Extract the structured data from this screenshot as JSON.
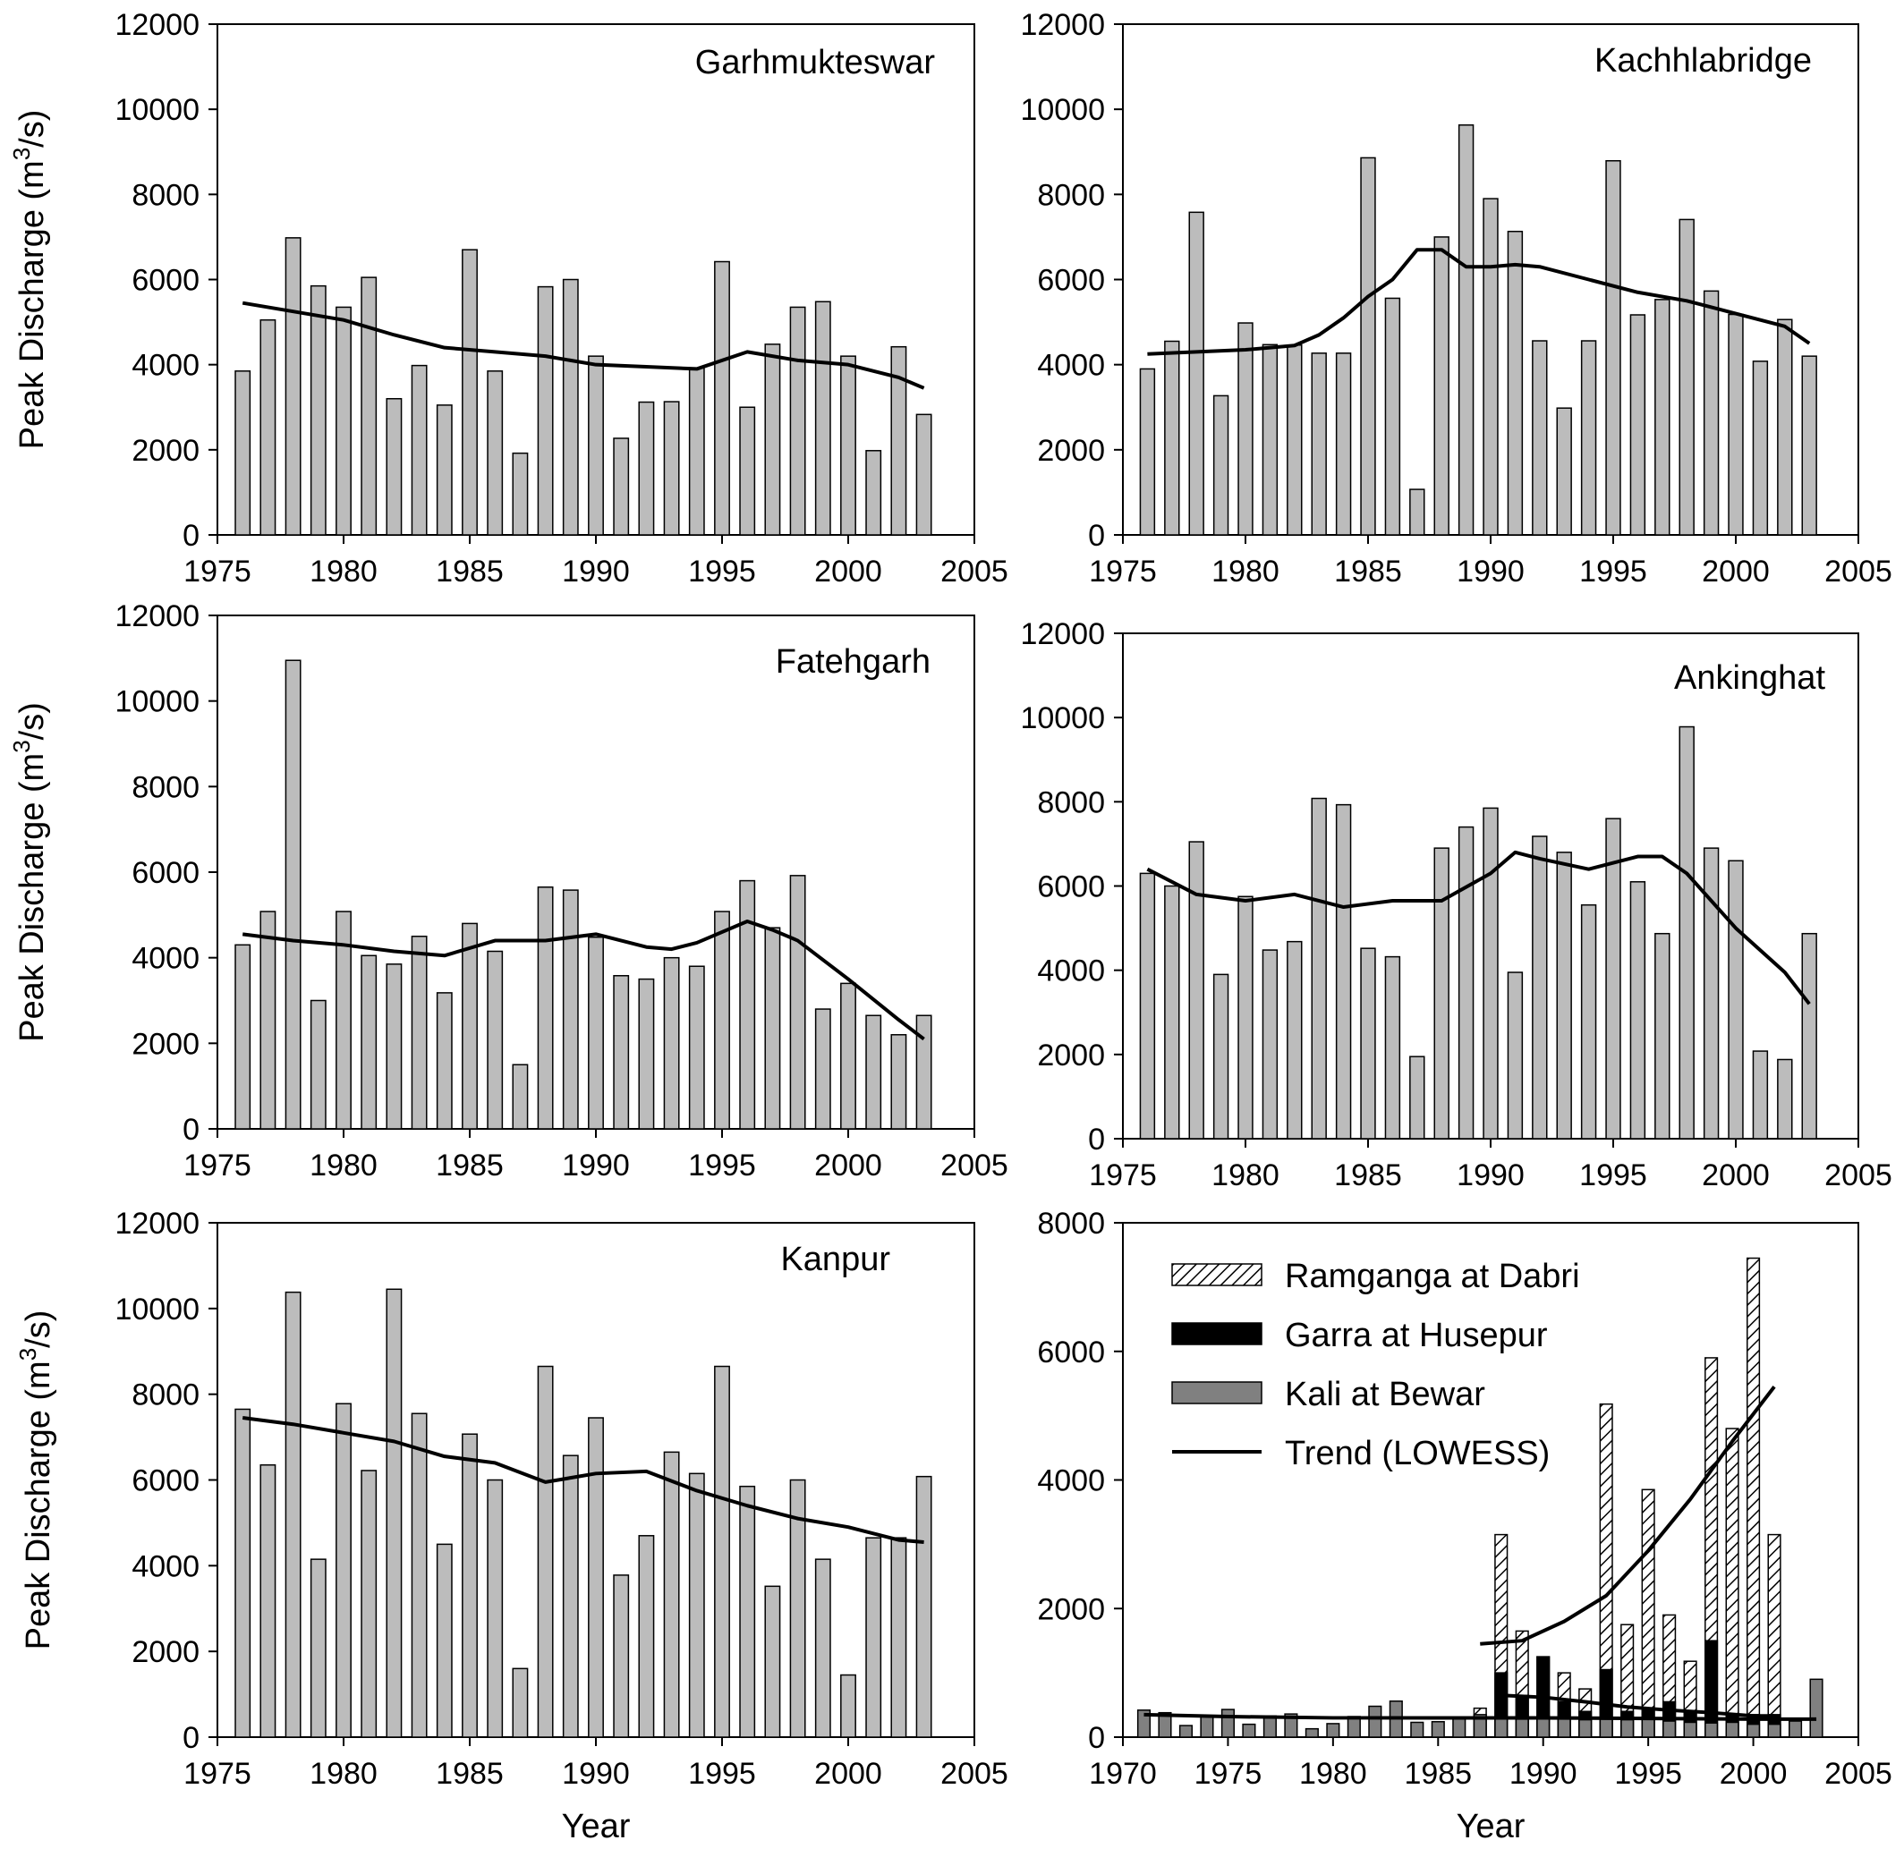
{
  "chart_data": [
    {
      "type": "bar",
      "title": "Garhmukteswar",
      "ylabel": "Peak Discharge",
      "yunit": "(m3/s)",
      "xlabel": "",
      "xlim": [
        1975,
        2005
      ],
      "ylim": [
        0,
        12000
      ],
      "xticks": [
        1975,
        1980,
        1985,
        1990,
        1995,
        2000,
        2005
      ],
      "yticks": [
        0,
        2000,
        4000,
        6000,
        8000,
        10000,
        12000
      ],
      "x": [
        1976,
        1977,
        1978,
        1979,
        1980,
        1981,
        1982,
        1983,
        1984,
        1985,
        1986,
        1987,
        1988,
        1989,
        1990,
        1991,
        1992,
        1993,
        1994,
        1995,
        1996,
        1997,
        1998,
        1999,
        2000,
        2001,
        2002,
        2003
      ],
      "series": [
        {
          "values": [
            3850,
            5050,
            6980,
            5850,
            5350,
            6050,
            3200,
            3980,
            3050,
            6700,
            3850,
            1920,
            5830,
            6000,
            4200,
            2270,
            3120,
            3130,
            3920,
            6420,
            3000,
            4480,
            5350,
            5480,
            4200,
            1980,
            4420,
            2830
          ]
        }
      ],
      "trend": {
        "x": [
          1976,
          1978,
          1980,
          1982,
          1984,
          1986,
          1988,
          1990,
          1992,
          1994,
          1996,
          1998,
          2000,
          2002,
          2003
        ],
        "y": [
          5450,
          5250,
          5050,
          4700,
          4400,
          4300,
          4200,
          4000,
          3950,
          3900,
          4300,
          4100,
          4000,
          3700,
          3450
        ]
      }
    },
    {
      "type": "bar",
      "title": "Kachhlabridge",
      "xlabel": "",
      "xlim": [
        1975,
        2005
      ],
      "ylim": [
        0,
        12000
      ],
      "xticks": [
        1975,
        1980,
        1985,
        1990,
        1995,
        2000,
        2005
      ],
      "yticks": [
        0,
        2000,
        4000,
        6000,
        8000,
        10000,
        12000
      ],
      "x": [
        1976,
        1977,
        1978,
        1979,
        1980,
        1981,
        1982,
        1983,
        1984,
        1985,
        1986,
        1987,
        1988,
        1989,
        1990,
        1991,
        1992,
        1993,
        1994,
        1995,
        1996,
        1997,
        1998,
        1999,
        2000,
        2001,
        2002,
        2003
      ],
      "series": [
        {
          "values": [
            3900,
            4550,
            7580,
            3270,
            4980,
            4470,
            4460,
            4270,
            4270,
            8860,
            5560,
            1070,
            7000,
            9630,
            7900,
            7130,
            4560,
            2980,
            4560,
            8790,
            5170,
            5530,
            7410,
            5730,
            5180,
            4080,
            5060,
            4200
          ]
        }
      ],
      "trend": {
        "x": [
          1976,
          1978,
          1980,
          1982,
          1983,
          1984,
          1985,
          1986,
          1987,
          1988,
          1989,
          1990,
          1991,
          1992,
          1994,
          1996,
          1998,
          2000,
          2002,
          2003
        ],
        "y": [
          4250,
          4300,
          4350,
          4450,
          4700,
          5100,
          5600,
          6000,
          6700,
          6700,
          6300,
          6300,
          6350,
          6300,
          6000,
          5700,
          5500,
          5200,
          4900,
          4500
        ]
      }
    },
    {
      "type": "bar",
      "title": "Fatehgarh",
      "ylabel": "Peak Discharge",
      "yunit": "(m3/s)",
      "xlabel": "",
      "xlim": [
        1975,
        2005
      ],
      "ylim": [
        0,
        12000
      ],
      "xticks": [
        1975,
        1980,
        1985,
        1990,
        1995,
        2000,
        2005
      ],
      "yticks": [
        0,
        2000,
        4000,
        6000,
        8000,
        10000,
        12000
      ],
      "x": [
        1976,
        1977,
        1978,
        1979,
        1980,
        1981,
        1982,
        1983,
        1984,
        1985,
        1986,
        1987,
        1988,
        1989,
        1990,
        1991,
        1992,
        1993,
        1994,
        1995,
        1996,
        1997,
        1998,
        1999,
        2000,
        2001,
        2002,
        2003
      ],
      "series": [
        {
          "values": [
            4300,
            5080,
            10950,
            3000,
            5080,
            4050,
            3850,
            4500,
            3180,
            4800,
            4150,
            1500,
            5650,
            5580,
            4480,
            3580,
            3500,
            4000,
            3800,
            5080,
            5800,
            4700,
            5920,
            2800,
            3400,
            2650,
            2200,
            2650
          ]
        }
      ],
      "trend": {
        "x": [
          1976,
          1978,
          1980,
          1982,
          1984,
          1986,
          1988,
          1990,
          1992,
          1993,
          1994,
          1996,
          1997,
          1998,
          2000,
          2002,
          2003
        ],
        "y": [
          4550,
          4400,
          4300,
          4150,
          4050,
          4400,
          4400,
          4550,
          4250,
          4200,
          4350,
          4850,
          4650,
          4400,
          3500,
          2550,
          2100
        ]
      }
    },
    {
      "type": "bar",
      "title": "Ankinghat",
      "xlabel": "",
      "xlim": [
        1975,
        2005
      ],
      "ylim": [
        0,
        12000
      ],
      "xticks": [
        1975,
        1980,
        1985,
        1990,
        1995,
        2000,
        2005
      ],
      "yticks": [
        0,
        2000,
        4000,
        6000,
        8000,
        10000,
        12000
      ],
      "x": [
        1976,
        1977,
        1978,
        1979,
        1980,
        1981,
        1982,
        1983,
        1984,
        1985,
        1986,
        1987,
        1988,
        1989,
        1990,
        1991,
        1992,
        1993,
        1994,
        1995,
        1996,
        1997,
        1998,
        1999,
        2000,
        2001,
        2002,
        2003
      ],
      "series": [
        {
          "values": [
            6300,
            6000,
            7050,
            3900,
            5750,
            4480,
            4680,
            8080,
            7930,
            4520,
            4320,
            1950,
            6900,
            7400,
            7850,
            3950,
            7180,
            6800,
            5550,
            7600,
            6100,
            4870,
            9780,
            6900,
            6600,
            2080,
            1880,
            4870
          ]
        }
      ],
      "trend": {
        "x": [
          1976,
          1978,
          1980,
          1982,
          1984,
          1986,
          1988,
          1990,
          1991,
          1992,
          1994,
          1996,
          1997,
          1998,
          2000,
          2002,
          2003
        ],
        "y": [
          6400,
          5800,
          5650,
          5800,
          5500,
          5650,
          5650,
          6300,
          6800,
          6650,
          6400,
          6700,
          6700,
          6300,
          5000,
          3950,
          3200
        ]
      }
    },
    {
      "type": "bar",
      "title": "Kanpur",
      "ylabel": "Peak Discharge",
      "yunit": "(m3/s)",
      "xlabel": "Year",
      "xlim": [
        1975,
        2005
      ],
      "ylim": [
        0,
        12000
      ],
      "xticks": [
        1975,
        1980,
        1985,
        1990,
        1995,
        2000,
        2005
      ],
      "yticks": [
        0,
        2000,
        4000,
        6000,
        8000,
        10000,
        12000
      ],
      "x": [
        1976,
        1977,
        1978,
        1979,
        1980,
        1981,
        1982,
        1983,
        1984,
        1985,
        1986,
        1987,
        1988,
        1989,
        1990,
        1991,
        1992,
        1993,
        1994,
        1995,
        1996,
        1997,
        1998,
        1999,
        2000,
        2001,
        2002,
        2003
      ],
      "series": [
        {
          "values": [
            7650,
            6350,
            10380,
            4150,
            7780,
            6220,
            10450,
            7550,
            4500,
            7070,
            6000,
            1600,
            8650,
            6570,
            7450,
            3780,
            4700,
            6650,
            6150,
            8650,
            5850,
            3520,
            6000,
            4150,
            1450,
            4650,
            4650,
            6080
          ]
        }
      ],
      "trend": {
        "x": [
          1976,
          1978,
          1980,
          1982,
          1984,
          1986,
          1988,
          1990,
          1992,
          1994,
          1996,
          1998,
          2000,
          2002,
          2003
        ],
        "y": [
          7450,
          7300,
          7100,
          6900,
          6550,
          6400,
          5950,
          6150,
          6200,
          5750,
          5400,
          5100,
          4900,
          4600,
          4550
        ]
      }
    },
    {
      "type": "bar",
      "title": "",
      "xlabel": "Year",
      "xlim": [
        1970,
        2005
      ],
      "ylim": [
        0,
        8000
      ],
      "xticks": [
        1970,
        1975,
        1980,
        1985,
        1990,
        1995,
        2000,
        2005
      ],
      "yticks": [
        0,
        2000,
        4000,
        6000,
        8000
      ],
      "legend": {
        "position": "top-left",
        "entries": [
          "Ramganga at Dabri",
          "Garra at Husepur",
          "Kali at Bewar",
          "Trend (LOWESS)"
        ]
      },
      "series": [
        {
          "name": "Ramganga at Dabri",
          "pattern": "hatched",
          "x": [
            1987,
            1988,
            1989,
            1990,
            1991,
            1992,
            1993,
            1994,
            1995,
            1996,
            1997,
            1998,
            1999,
            2000,
            2001
          ],
          "values": [
            450,
            3150,
            1650,
            1250,
            1000,
            750,
            5180,
            1750,
            3850,
            1900,
            1180,
            5900,
            4800,
            7450,
            3150
          ]
        },
        {
          "name": "Garra at Husepur",
          "pattern": "solid-black",
          "x": [
            1988,
            1989,
            1990,
            1991,
            1992,
            1993,
            1994,
            1995,
            1996,
            1997,
            1998,
            1999,
            2000,
            2001
          ],
          "values": [
            1000,
            650,
            1250,
            550,
            400,
            1050,
            400,
            450,
            550,
            400,
            1500,
            350,
            350,
            350
          ]
        },
        {
          "name": "Kali at Bewar",
          "pattern": "solid-gray",
          "x": [
            1971,
            1972,
            1973,
            1974,
            1975,
            1976,
            1977,
            1978,
            1979,
            1980,
            1981,
            1982,
            1983,
            1984,
            1985,
            1986,
            1987,
            1988,
            1989,
            1990,
            1991,
            1992,
            1993,
            1994,
            1995,
            1996,
            1997,
            1998,
            1999,
            2000,
            2001,
            2002,
            2003
          ],
          "values": [
            420,
            380,
            180,
            330,
            430,
            200,
            330,
            360,
            130,
            210,
            320,
            480,
            560,
            230,
            240,
            300,
            350,
            300,
            280,
            330,
            300,
            270,
            280,
            270,
            280,
            250,
            230,
            220,
            230,
            200,
            200,
            250,
            900
          ]
        }
      ],
      "trends": [
        {
          "series": "Kali at Bewar",
          "x": [
            1971,
            1975,
            1980,
            1985,
            1990,
            1995,
            2000,
            2003
          ],
          "y": [
            350,
            320,
            300,
            300,
            300,
            290,
            280,
            280
          ]
        },
        {
          "series": "Garra at Husepur",
          "x": [
            1988,
            1990,
            1992,
            1994,
            1996,
            1998,
            2000,
            2001
          ],
          "y": [
            650,
            620,
            550,
            470,
            420,
            380,
            330,
            330
          ]
        },
        {
          "series": "Ramganga at Dabri",
          "x": [
            1987,
            1989,
            1991,
            1993,
            1995,
            1997,
            1999,
            2001
          ],
          "y": [
            1450,
            1500,
            1800,
            2200,
            2900,
            3700,
            4600,
            5450
          ]
        }
      ]
    }
  ]
}
